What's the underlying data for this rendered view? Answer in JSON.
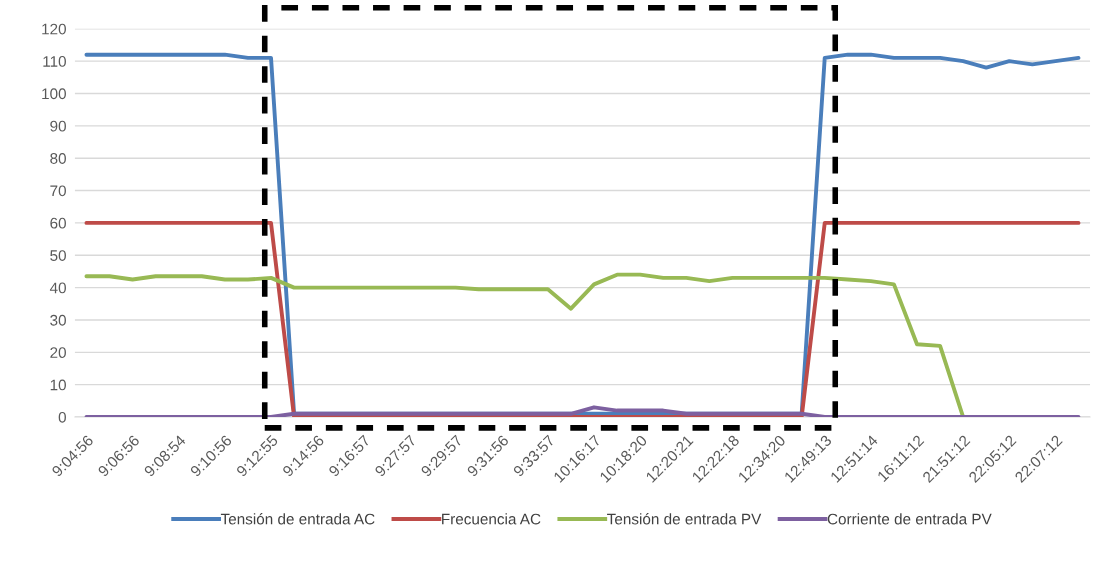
{
  "chart_data": {
    "type": "line",
    "categories": [
      "9:04:56",
      null,
      "9:06:56",
      null,
      "9:08:54",
      null,
      "9:10:56",
      null,
      "9:12:55",
      null,
      "9:14:56",
      null,
      "9:16:57",
      null,
      "9:27:57",
      null,
      "9:29:57",
      null,
      "9:31:56",
      null,
      "9:33:57",
      null,
      "10:16:17",
      null,
      "10:18:20",
      null,
      "12:20:21",
      null,
      "12:22:18",
      null,
      "12:34:20",
      null,
      "12:49:13",
      null,
      "12:51:14",
      null,
      "16:11:12",
      null,
      "21:51:12",
      null,
      "22:05:12",
      null,
      "22:07:12",
      null
    ],
    "series": [
      {
        "name": "Tensión de entrada AC",
        "color": "#4a7ebb",
        "values": [
          112,
          112,
          112,
          112,
          112,
          112,
          112,
          111,
          111,
          1,
          1,
          1,
          1,
          1,
          1,
          1,
          1,
          1,
          1,
          1,
          1,
          1,
          1,
          1,
          1,
          1,
          1,
          1,
          1,
          1,
          1,
          1,
          111,
          112,
          112,
          111,
          111,
          111,
          110,
          108,
          110,
          109,
          110,
          111
        ]
      },
      {
        "name": "Frecuencia AC",
        "color": "#be4b48",
        "values": [
          60,
          60,
          60,
          60,
          60,
          60,
          60,
          60,
          60,
          0,
          0,
          0,
          0,
          0,
          0,
          0,
          0,
          0,
          0,
          0,
          0,
          0,
          0,
          0,
          0,
          0,
          0,
          0,
          0,
          0,
          0,
          0,
          60,
          60,
          60,
          60,
          60,
          60,
          60,
          60,
          60,
          60,
          60,
          60
        ]
      },
      {
        "name": "Tensión de entrada PV",
        "color": "#98b954",
        "values": [
          43.5,
          43.5,
          42.5,
          43.5,
          43.5,
          43.5,
          42.5,
          42.5,
          43,
          40,
          40,
          40,
          40,
          40,
          40,
          40,
          40,
          39.5,
          39.5,
          39.5,
          39.5,
          33.5,
          41,
          44,
          44,
          43,
          43,
          42,
          43,
          43,
          43,
          43,
          43,
          42.5,
          42,
          41,
          22.5,
          22,
          0,
          0,
          null,
          null,
          null,
          null
        ]
      },
      {
        "name": "Corriente de entrada PV",
        "color": "#7d60a0",
        "values": [
          0,
          0,
          0,
          0,
          0,
          0,
          0,
          0,
          0,
          1,
          1,
          1,
          1,
          1,
          1,
          1,
          1,
          1,
          1,
          1,
          1,
          1,
          3,
          2,
          2,
          2,
          1,
          1,
          1,
          1,
          1,
          1,
          0,
          0,
          0,
          0,
          0,
          0,
          0,
          0,
          0,
          0,
          0,
          0
        ]
      }
    ],
    "ylim": [
      0,
      120
    ],
    "yticks": [
      0,
      10,
      20,
      30,
      40,
      50,
      60,
      70,
      80,
      90,
      100,
      110,
      120
    ],
    "grid": "y",
    "legend": "bottom",
    "marker": "none",
    "line_style": "solid"
  }
}
